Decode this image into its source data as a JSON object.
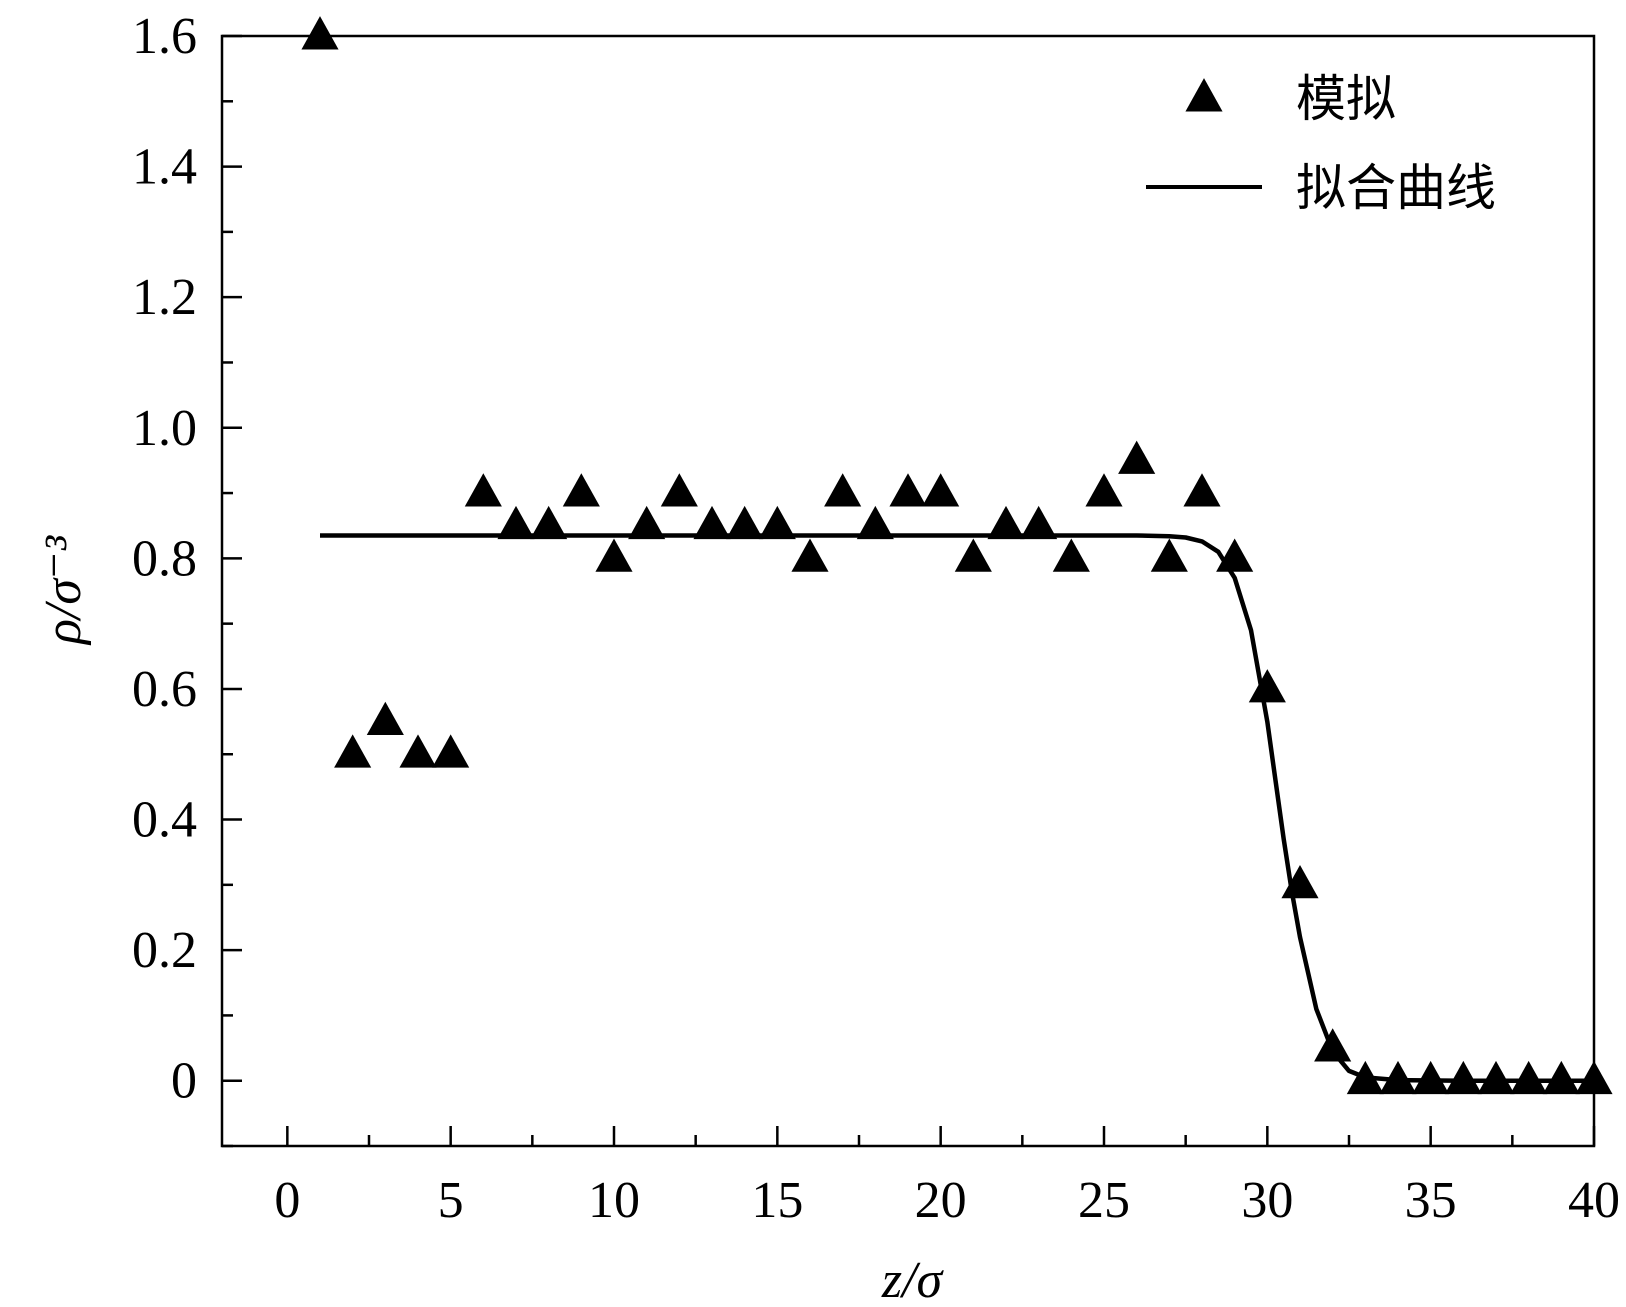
{
  "chart_data": {
    "type": "scatter",
    "xlabel": "z/σ",
    "ylabel": "ρ/σ⁻³",
    "xlim": [
      -2,
      40
    ],
    "ylim": [
      -0.1,
      1.6
    ],
    "xticks": [
      0,
      5,
      10,
      15,
      20,
      25,
      30,
      35,
      40
    ],
    "yticks": [
      0,
      0.2,
      0.4,
      0.6,
      0.8,
      1.0,
      1.2,
      1.4,
      1.6
    ],
    "xtick_labels": [
      "0",
      "5",
      "10",
      "15",
      "20",
      "25",
      "30",
      "35",
      "40"
    ],
    "ytick_labels": [
      "0",
      "0.2",
      "0.4",
      "0.6",
      "0.8",
      "1.0",
      "1.2",
      "1.4",
      "1.6"
    ],
    "grid": false,
    "legend_position": "top-right",
    "series": [
      {
        "name": "模拟",
        "kind": "scatter",
        "marker": "triangle",
        "color": "#000000",
        "x": [
          1,
          2,
          3,
          4,
          5,
          6,
          7,
          8,
          9,
          10,
          11,
          12,
          13,
          14,
          15,
          16,
          17,
          18,
          19,
          20,
          21,
          22,
          23,
          24,
          25,
          26,
          27,
          28,
          29,
          30,
          31,
          32,
          33,
          34,
          35,
          36,
          37,
          38,
          39,
          40
        ],
        "y": [
          1.6,
          0.5,
          0.55,
          0.5,
          0.5,
          0.9,
          0.85,
          0.85,
          0.9,
          0.8,
          0.85,
          0.9,
          0.85,
          0.85,
          0.85,
          0.8,
          0.9,
          0.85,
          0.9,
          0.9,
          0.8,
          0.85,
          0.85,
          0.8,
          0.9,
          0.95,
          0.8,
          0.9,
          0.8,
          0.6,
          0.3,
          0.05,
          0,
          0,
          0,
          0,
          0,
          0,
          0,
          0
        ]
      },
      {
        "name": "拟合曲线",
        "kind": "line",
        "color": "#000000",
        "x": [
          1,
          5,
          10,
          15,
          20,
          25,
          26,
          27,
          27.5,
          28,
          28.5,
          29,
          29.5,
          30,
          30.25,
          30.5,
          30.75,
          31,
          31.5,
          32,
          32.5,
          33,
          34,
          36,
          40
        ],
        "y": [
          0.835,
          0.835,
          0.835,
          0.835,
          0.835,
          0.835,
          0.835,
          0.834,
          0.832,
          0.826,
          0.81,
          0.77,
          0.69,
          0.55,
          0.46,
          0.37,
          0.29,
          0.22,
          0.11,
          0.045,
          0.015,
          0.005,
          0.001,
          0,
          0
        ]
      }
    ]
  }
}
